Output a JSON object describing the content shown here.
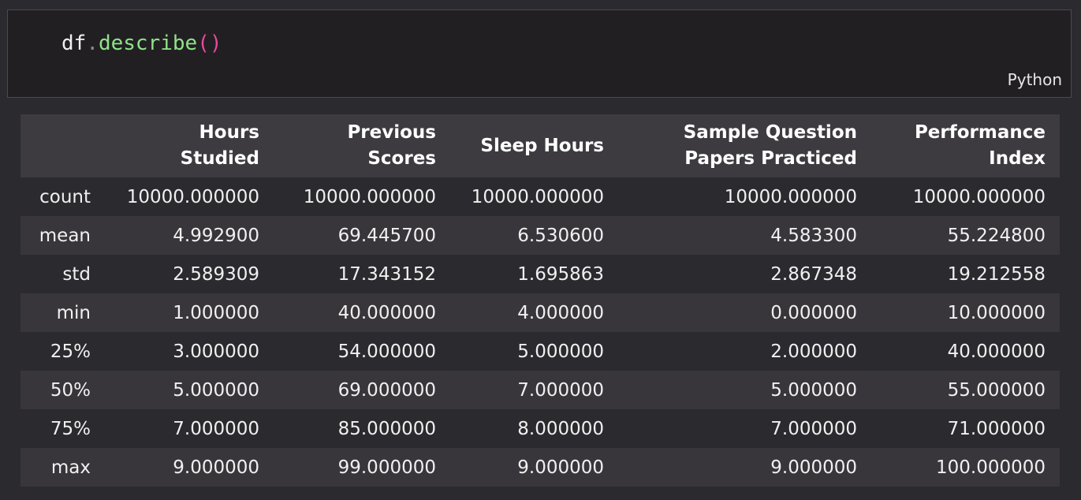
{
  "code_cell": {
    "tokens": {
      "name": "df",
      "dot": ".",
      "func": "describe",
      "parens": "()"
    },
    "language": "Python"
  },
  "table": {
    "columns": [
      "",
      "Hours\nStudied",
      "Previous\nScores",
      "Sleep Hours",
      "Sample Question\nPapers Practiced",
      "Performance\nIndex"
    ],
    "rows": [
      {
        "label": "count",
        "values": [
          "10000.000000",
          "10000.000000",
          "10000.000000",
          "10000.000000",
          "10000.000000"
        ]
      },
      {
        "label": "mean",
        "values": [
          "4.992900",
          "69.445700",
          "6.530600",
          "4.583300",
          "55.224800"
        ]
      },
      {
        "label": "std",
        "values": [
          "2.589309",
          "17.343152",
          "1.695863",
          "2.867348",
          "19.212558"
        ]
      },
      {
        "label": "min",
        "values": [
          "1.000000",
          "40.000000",
          "4.000000",
          "0.000000",
          "10.000000"
        ]
      },
      {
        "label": "25%",
        "values": [
          "3.000000",
          "54.000000",
          "5.000000",
          "2.000000",
          "40.000000"
        ]
      },
      {
        "label": "50%",
        "values": [
          "5.000000",
          "69.000000",
          "7.000000",
          "5.000000",
          "55.000000"
        ]
      },
      {
        "label": "75%",
        "values": [
          "7.000000",
          "85.000000",
          "8.000000",
          "7.000000",
          "71.000000"
        ]
      },
      {
        "label": "max",
        "values": [
          "9.000000",
          "99.000000",
          "9.000000",
          "9.000000",
          "100.000000"
        ]
      }
    ]
  }
}
